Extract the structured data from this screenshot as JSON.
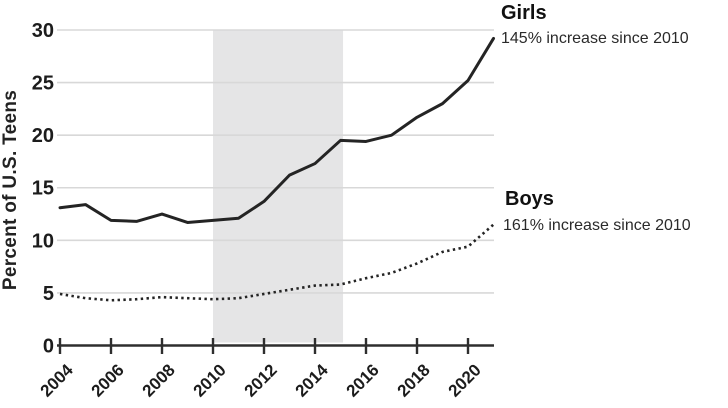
{
  "chart_data": {
    "type": "line",
    "title": "",
    "xlabel": "",
    "ylabel": "Percent of U.S. Teens",
    "x": [
      2004,
      2005,
      2006,
      2007,
      2008,
      2009,
      2010,
      2011,
      2012,
      2013,
      2014,
      2015,
      2016,
      2017,
      2018,
      2019,
      2020,
      2021
    ],
    "series": [
      {
        "name": "Girls",
        "line_style": "solid",
        "color": "#242424",
        "values": [
          13.1,
          13.4,
          11.9,
          11.8,
          12.5,
          11.7,
          11.9,
          12.1,
          13.7,
          16.2,
          17.3,
          19.5,
          19.4,
          20.0,
          21.7,
          23.0,
          25.2,
          29.2
        ],
        "annotation": "145% increase since 2010"
      },
      {
        "name": "Boys",
        "line_style": "dotted",
        "color": "#242424",
        "values": [
          4.9,
          4.5,
          4.3,
          4.4,
          4.6,
          4.5,
          4.4,
          4.5,
          4.9,
          5.3,
          5.7,
          5.8,
          6.4,
          6.9,
          7.8,
          8.9,
          9.4,
          11.5
        ],
        "annotation": "161% increase since 2010"
      }
    ],
    "xlim": [
      2004,
      2021
    ],
    "ylim": [
      0,
      30
    ],
    "xticks": [
      2004,
      2006,
      2008,
      2010,
      2012,
      2014,
      2016,
      2018,
      2020
    ],
    "yticks": [
      0,
      5,
      10,
      15,
      20,
      25,
      30
    ],
    "grid": "horizontal",
    "legend_position": "right-edge annotations",
    "shaded_region": {
      "from_x": 2010,
      "to_x": 2015.1,
      "color": "#e5e5e6"
    },
    "colors": {
      "gridline": "#d8d8d8",
      "axis": "#2e2e2e",
      "tick_label": "#1c1c1c"
    }
  },
  "annotations": {
    "girls_title": "Girls",
    "girls_subtitle": "145% increase since 2010",
    "boys_title": "Boys",
    "boys_subtitle": "161% increase since 2010"
  }
}
